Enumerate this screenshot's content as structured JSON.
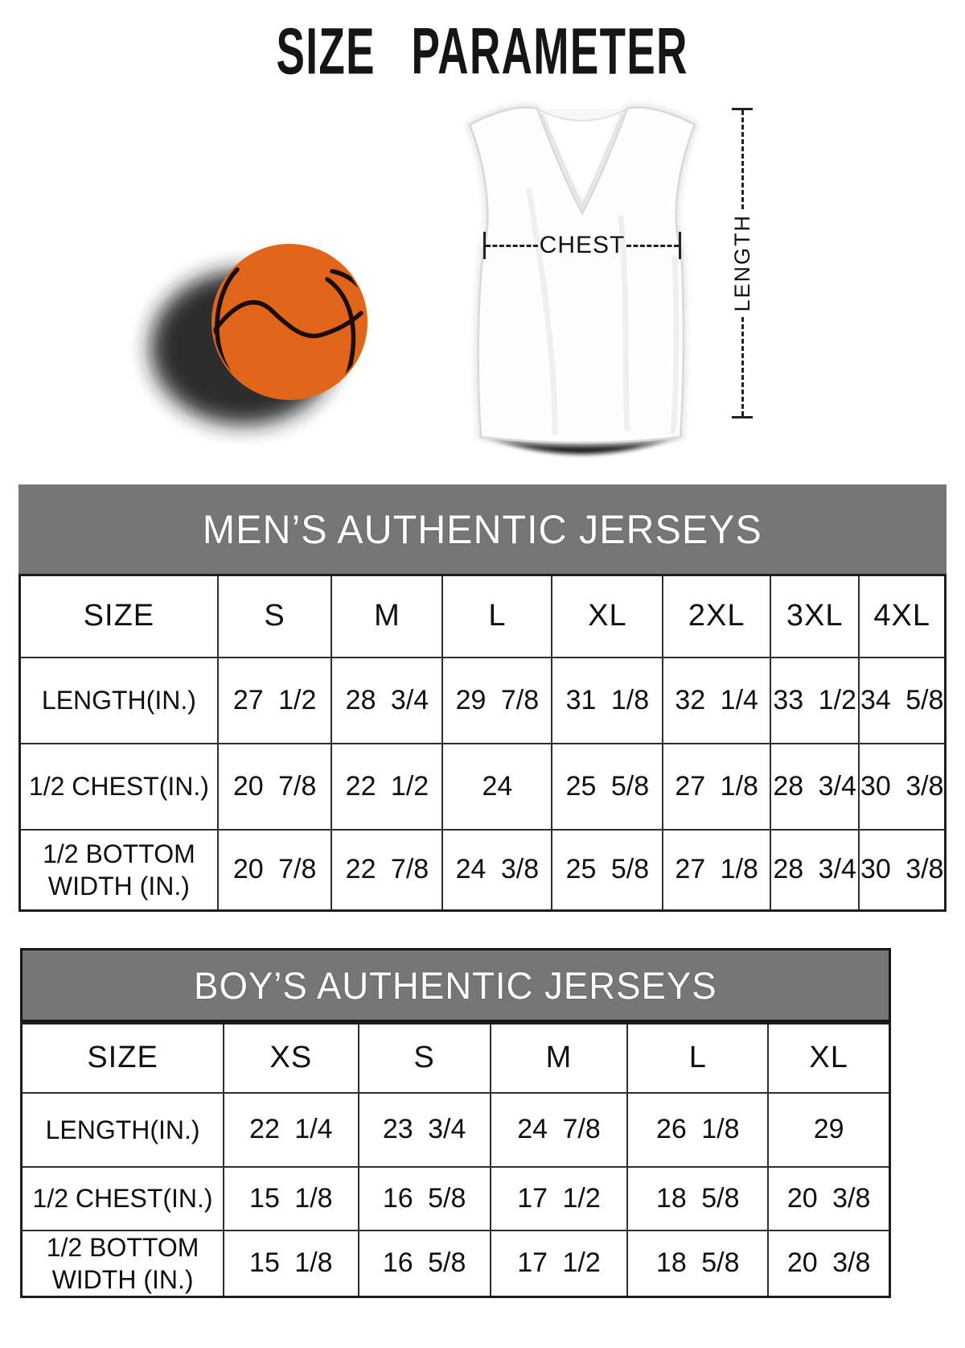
{
  "page": {
    "title": "SIZE PARAMETER"
  },
  "figure": {
    "chest_label": "CHEST",
    "length_label": "LENGTH",
    "basketball_icon": "basketball",
    "jersey_icon": "jersey-front-view"
  },
  "colors": {
    "banner_gray": "#767676",
    "banner_text": "#ffffff",
    "table_border": "#2e2e2e",
    "basketball_orange": "#e2661a",
    "text_black": "#101010"
  },
  "tables": [
    {
      "banner": "MEN’S AUTHENTIC JERSEYS",
      "corner_header": "SIZE",
      "columns": [
        "S",
        "M",
        "L",
        "XL",
        "2XL",
        "3XL",
        "4XL"
      ],
      "rows": [
        {
          "label": "LENGTH(IN.)",
          "values": [
            "27 1/2",
            "28 3/4",
            "29 7/8",
            "31 1/8",
            "32 1/4",
            "33 1/2",
            "34 5/8"
          ]
        },
        {
          "label": "1/2 CHEST(IN.)",
          "values": [
            "20 7/8",
            "22 1/2",
            "24",
            "25 5/8",
            "27 1/8",
            "28 3/4",
            "30 3/8"
          ]
        },
        {
          "label": "1/2 BOTTOM\nWIDTH  (IN.)",
          "values": [
            "20 7/8",
            "22 7/8",
            "24 3/8",
            "25 5/8",
            "27 1/8",
            "28 3/4",
            "30 3/8"
          ]
        }
      ]
    },
    {
      "banner": "BOY’S AUTHENTIC JERSEYS",
      "corner_header": "SIZE",
      "columns": [
        "XS",
        "S",
        "M",
        "L",
        "XL"
      ],
      "rows": [
        {
          "label": "LENGTH(IN.)",
          "values": [
            "22 1/4",
            "23 3/4",
            "24 7/8",
            "26 1/8",
            "29"
          ]
        },
        {
          "label": "1/2 CHEST(IN.)",
          "values": [
            "15 1/8",
            "16 5/8",
            "17 1/2",
            "18 5/8",
            "20 3/8"
          ]
        },
        {
          "label": "1/2 BOTTOM\nWIDTH  (IN.)",
          "values": [
            "15 1/8",
            "16 5/8",
            "17 1/2",
            "18 5/8",
            "20 3/8"
          ]
        }
      ]
    }
  ]
}
